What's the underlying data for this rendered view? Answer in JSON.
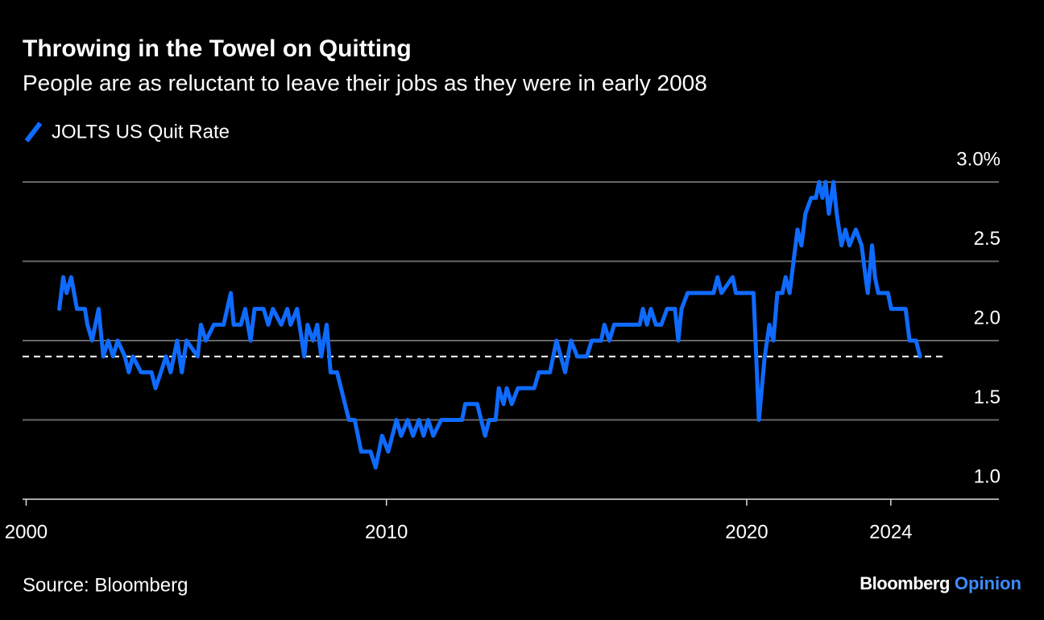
{
  "chart_data": {
    "type": "line",
    "title": "Throwing in the Towel on Quitting",
    "subtitle": "People are as reluctant to leave their jobs as they were in early 2008",
    "source": "Source: Bloomberg",
    "logo": [
      "Bloomberg",
      "Opinion"
    ],
    "x": [
      2000.92,
      2001.03,
      2001.12,
      2001.25,
      2001.41,
      2001.63,
      2001.7,
      2001.83,
      2002.01,
      2002.14,
      2002.28,
      2002.41,
      2002.54,
      2002.74,
      2002.85,
      2002.96,
      2003.19,
      2003.48,
      2003.59,
      2003.74,
      2003.88,
      2004.01,
      2004.19,
      2004.32,
      2004.45,
      2004.76,
      2004.85,
      2004.99,
      2005.21,
      2005.48,
      2005.68,
      2005.76,
      2005.96,
      2006.08,
      2006.23,
      2006.34,
      2006.59,
      2006.72,
      2006.85,
      2007.08,
      2007.25,
      2007.34,
      2007.52,
      2007.72,
      2007.81,
      2007.96,
      2008.08,
      2008.19,
      2008.34,
      2008.45,
      2008.63,
      2008.96,
      2009.12,
      2009.3,
      2009.56,
      2009.7,
      2009.88,
      2010.05,
      2010.28,
      2010.41,
      2010.59,
      2010.74,
      2010.9,
      2011.03,
      2011.16,
      2011.3,
      2011.52,
      2012.1,
      2012.19,
      2012.52,
      2012.74,
      2012.85,
      2013.03,
      2013.12,
      2013.25,
      2013.34,
      2013.48,
      2013.65,
      2014.1,
      2014.23,
      2014.54,
      2014.72,
      2014.96,
      2015.12,
      2015.3,
      2015.56,
      2015.7,
      2015.96,
      2016.05,
      2016.19,
      2016.32,
      2017.03,
      2017.12,
      2017.23,
      2017.34,
      2017.48,
      2017.63,
      2017.79,
      2018.01,
      2018.1,
      2018.19,
      2018.36,
      2019.08,
      2019.19,
      2019.3,
      2019.61,
      2019.7,
      2020.19,
      2020.34,
      2020.5,
      2020.63,
      2020.74,
      2020.85,
      2020.99,
      2021.08,
      2021.19,
      2021.3,
      2021.41,
      2021.52,
      2021.63,
      2021.79,
      2021.92,
      2022.01,
      2022.1,
      2022.19,
      2022.28,
      2022.41,
      2022.5,
      2022.63,
      2022.74,
      2022.85,
      2023.03,
      2023.19,
      2023.3,
      2023.36,
      2023.48,
      2023.56,
      2023.65,
      2023.92,
      2024.01,
      2024.41,
      2024.52,
      2024.7,
      2024.81
    ],
    "series": [
      {
        "name": "JOLTS US Quit Rate",
        "color": "#0f6bff",
        "values": [
          2.2,
          2.4,
          2.3,
          2.4,
          2.2,
          2.2,
          2.1,
          2.0,
          2.2,
          1.9,
          2.0,
          1.9,
          2.0,
          1.9,
          1.8,
          1.9,
          1.8,
          1.8,
          1.7,
          1.8,
          1.9,
          1.8,
          2.0,
          1.8,
          2.0,
          1.9,
          2.1,
          2.0,
          2.1,
          2.1,
          2.3,
          2.1,
          2.1,
          2.2,
          2.0,
          2.2,
          2.2,
          2.1,
          2.2,
          2.1,
          2.2,
          2.1,
          2.2,
          1.9,
          2.1,
          2.0,
          2.1,
          1.9,
          2.1,
          1.8,
          1.8,
          1.5,
          1.5,
          1.3,
          1.3,
          1.2,
          1.4,
          1.3,
          1.5,
          1.4,
          1.5,
          1.4,
          1.5,
          1.4,
          1.5,
          1.4,
          1.5,
          1.5,
          1.6,
          1.6,
          1.4,
          1.5,
          1.5,
          1.7,
          1.6,
          1.7,
          1.6,
          1.7,
          1.7,
          1.8,
          1.8,
          2.0,
          1.8,
          2.0,
          1.9,
          1.9,
          2.0,
          2.0,
          2.1,
          2.0,
          2.1,
          2.1,
          2.2,
          2.1,
          2.2,
          2.1,
          2.1,
          2.2,
          2.2,
          2.0,
          2.2,
          2.3,
          2.3,
          2.4,
          2.3,
          2.4,
          2.3,
          2.3,
          1.5,
          1.9,
          2.1,
          2.0,
          2.3,
          2.3,
          2.4,
          2.3,
          2.5,
          2.7,
          2.6,
          2.8,
          2.9,
          2.9,
          3.0,
          2.9,
          3.0,
          2.8,
          3.0,
          2.8,
          2.6,
          2.7,
          2.6,
          2.7,
          2.6,
          2.4,
          2.3,
          2.6,
          2.4,
          2.3,
          2.3,
          2.2,
          2.2,
          2.0,
          2.0,
          1.9
        ]
      }
    ],
    "reference_value": 1.9,
    "xlim": [
      1999.9,
      2027
    ],
    "xticks": [
      2000,
      2010,
      2020,
      2024
    ],
    "ylim": [
      1.0,
      3.0
    ],
    "yticks": [
      {
        "value": 1.0,
        "label": "1.0"
      },
      1.5,
      {
        "value": 2.0,
        "label": "2.0"
      },
      2.5,
      {
        "value": 3.0,
        "label": "3.0%"
      }
    ],
    "grid": true
  }
}
